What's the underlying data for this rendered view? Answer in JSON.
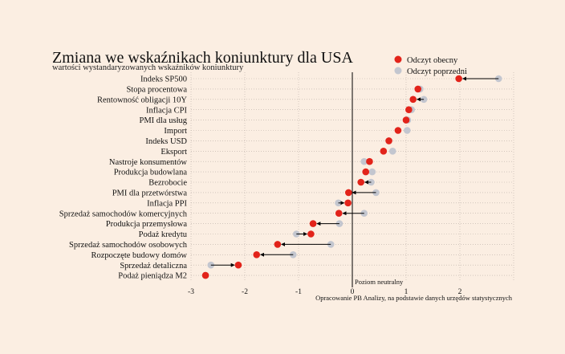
{
  "chart_data": {
    "type": "dot-arrow",
    "title": "Zmiana we wskaźnikach koniunktury dla USA",
    "subtitle": "wartości wystandaryzowanych wskaźników koniunktury",
    "xlim": [
      -3,
      3
    ],
    "xticks": [
      -3,
      -2,
      -1,
      0,
      1,
      2
    ],
    "xtick_labels": [
      "-3",
      "-2",
      "-1",
      "0",
      "1",
      "2"
    ],
    "neutral_label": "Poziom neutralny",
    "source": "Opracowanie PB Analizy, na podstawie danych urzędów statystycznych",
    "legend_position": "top-right",
    "grid": true,
    "colors": {
      "current": "#e2231a",
      "previous": "#c3c6cf",
      "arrow": "#000000"
    },
    "series": [
      {
        "name": "Odczyt obecny"
      },
      {
        "name": "Odczyt poprzedni"
      }
    ],
    "categories": [
      "Indeks SP500",
      "Stopa procentowa",
      "Rentowność obligacji 10Y",
      "Inflacja CPI",
      "PMI dla usług",
      "Import",
      "Indeks USD",
      "Eksport",
      "Nastroje konsumentów",
      "Produkcja budowlana",
      "Bezrobocie",
      "PMI dla przetwórstwa",
      "Inflacja PPI",
      "Sprzedaż samochodów komercyjnych",
      "Produkcja przemysłowa",
      "Podaż kredytu",
      "Sprzedaż samochodów osobowych",
      "Rozpoczęte budowy domów",
      "Sprzedaż detaliczna",
      "Podaż pieniądza M2"
    ],
    "current": [
      1.98,
      1.22,
      1.13,
      1.05,
      1.0,
      0.85,
      0.68,
      0.58,
      0.32,
      0.25,
      0.16,
      -0.07,
      -0.08,
      -0.25,
      -0.73,
      -0.77,
      -1.39,
      -1.78,
      -2.12,
      -2.73
    ],
    "previous": [
      2.72,
      1.26,
      1.33,
      1.1,
      1.03,
      1.02,
      0.68,
      0.75,
      0.22,
      0.37,
      0.35,
      0.44,
      -0.26,
      0.22,
      -0.24,
      -1.04,
      -0.4,
      -1.1,
      -2.63,
      -2.73
    ]
  }
}
